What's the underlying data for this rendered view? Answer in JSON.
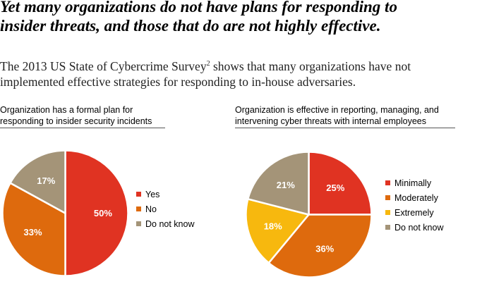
{
  "headline": {
    "line1": "Yet many organizations do not have plans for responding to",
    "line2": "insider threats, and those that do are not highly effective."
  },
  "intro": {
    "line1_pre": "The 2013 US State of Cybercrime Survey",
    "footnote": "2",
    "line1_post": " shows that many organizations have not",
    "line2": "implemented effective strategies for responding to in-house adversaries."
  },
  "chart_data": [
    {
      "type": "pie",
      "title_line1": "Organization has a formal plan for",
      "title_line2": "responding to insider security incidents",
      "series": [
        {
          "name": "Yes",
          "value": 50,
          "label": "50%",
          "color": "#e03322"
        },
        {
          "name": "No",
          "value": 33,
          "label": "33%",
          "color": "#de6a0d"
        },
        {
          "name": "Do not know",
          "value": 17,
          "label": "17%",
          "color": "#a49478"
        }
      ],
      "legend_position": "right"
    },
    {
      "type": "pie",
      "title_line1": "Organization is effective in reporting, managing, and",
      "title_line2": "intervening cyber threats with internal employees",
      "series": [
        {
          "name": "Minimally",
          "value": 25,
          "label": "25%",
          "color": "#e03322"
        },
        {
          "name": "Moderately",
          "value": 36,
          "label": "36%",
          "color": "#de6a0d"
        },
        {
          "name": "Extremely",
          "value": 18,
          "label": "18%",
          "color": "#f7b80e"
        },
        {
          "name": "Do not know",
          "value": 21,
          "label": "21%",
          "color": "#a49478"
        }
      ],
      "legend_position": "right"
    }
  ]
}
